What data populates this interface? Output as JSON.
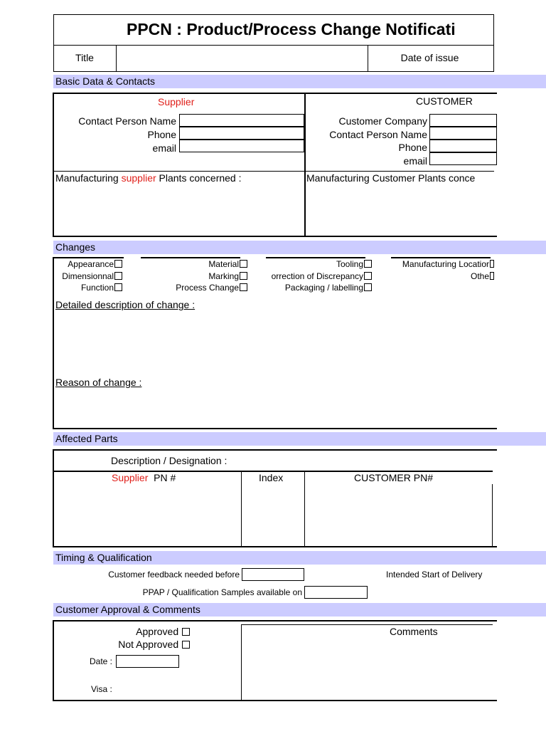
{
  "header": {
    "title": "PPCN : Product/Process Change Notificati",
    "title_label": "Title",
    "date_label": "Date of issue"
  },
  "basic": {
    "section": "Basic Data & Contacts",
    "supplier_heading": "Supplier",
    "customer_heading": "CUSTOMER",
    "supplier_fields": [
      "Contact Person Name",
      "Phone",
      "email"
    ],
    "customer_fields": [
      "Customer Company",
      "Contact Person Name",
      "Phone",
      "email"
    ],
    "supplier_plants_pre": "Manufacturing ",
    "supplier_plants_red": "supplier",
    "supplier_plants_post": " Plants concerned :",
    "customer_plants": "Manufacturing Customer Plants conce"
  },
  "changes": {
    "section": "Changes",
    "col1": [
      "Appearance",
      "Dimensionnal",
      "Function"
    ],
    "col2": [
      "Material",
      "Marking",
      "Process Change"
    ],
    "col3": [
      "Tooling",
      "orrection of Discrepancy",
      "Packaging / labelling"
    ],
    "col4": [
      "Manufacturing Locatior",
      "Othe"
    ],
    "description_label": "Detailed description of change :",
    "reason_label": "Reason of change :"
  },
  "parts": {
    "section": "Affected Parts",
    "designation": "Description / Designation :",
    "supplier_red": "Supplier",
    "supplier_pn": "PN #",
    "index": "Index",
    "customer_pn": "CUSTOMER PN#"
  },
  "timing": {
    "section": "Timing & Qualification",
    "feedback": "Customer feedback needed before",
    "start": "Intended Start of Delivery",
    "ppap": "PPAP / Qualification Samples available on"
  },
  "approval": {
    "section": "Customer Approval & Comments",
    "approved": "Approved",
    "not_approved": "Not Approved",
    "date": "Date :",
    "visa": "Visa :",
    "comments": "Comments"
  }
}
